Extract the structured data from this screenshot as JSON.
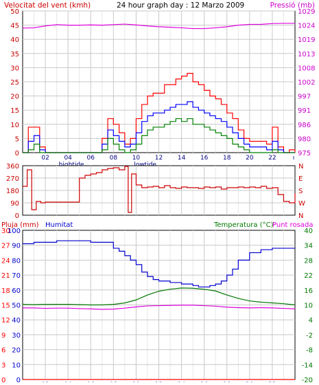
{
  "header": {
    "left_title": "Velocitat del vent (kmh)",
    "center_title": "24 hour graph day : 12 Marzo 2009",
    "right_title": "Pressió (mb)"
  },
  "colors": {
    "gust": "#ff0000",
    "avg": "#0000ff",
    "min": "#008000",
    "pressure": "#e000e0",
    "dir": "#cc0000",
    "humidity": "#0000cc",
    "temperature": "#007700",
    "dewpoint": "#e000e0",
    "rain": "#ff0000",
    "grid": "#c8c8c8",
    "left_axis": "#cc0000",
    "right_axis": "#cc00cc",
    "bottom_axis": "#000080"
  },
  "chart_data": [
    {
      "type": "line",
      "title": "Velocitat del vent (kmh) / Pressió (mb)",
      "xlabel": "",
      "x_ticks": [
        "02",
        "04",
        "06",
        "08",
        "10",
        "12",
        "14",
        "16",
        "18",
        "20",
        "22"
      ],
      "x_tick_hours": [
        2,
        4,
        6,
        8,
        10,
        12,
        14,
        16,
        18,
        20,
        22
      ],
      "x_annotations": [
        {
          "label": "hightide",
          "hour": 3
        },
        {
          "label": "lowtide",
          "hour": 9.5
        }
      ],
      "xlim": [
        0,
        24
      ],
      "ylabel_left": "Velocitat del vent (kmh)",
      "ylim_left": [
        0,
        50
      ],
      "yticks_left": [
        0,
        5,
        10,
        15,
        20,
        25,
        30,
        35,
        40,
        45,
        50
      ],
      "ylabel_right": "Pressió (mb)",
      "ylim_right": [
        975,
        1029
      ],
      "yticks_right": [
        975,
        980,
        986,
        991,
        997,
        1002,
        1008,
        1013,
        1019,
        1024,
        1029
      ],
      "series": [
        {
          "axis": "right",
          "color_key": "pressure",
          "x": [
            0,
            1,
            2,
            3,
            4,
            5,
            6,
            7,
            8,
            9,
            10,
            11,
            12,
            13,
            14,
            15,
            16,
            17,
            18,
            19,
            20,
            21,
            22,
            23,
            24
          ],
          "y": [
            1022.5,
            1022.6,
            1023.3,
            1023.8,
            1023.6,
            1023.6,
            1023.7,
            1023.6,
            1023.8,
            1024.0,
            1023.7,
            1023.3,
            1023.0,
            1022.8,
            1022.6,
            1022.3,
            1022.3,
            1022.6,
            1023.0,
            1023.6,
            1023.9,
            1023.9,
            1024.2,
            1024.3,
            1024.3
          ]
        },
        {
          "axis": "left",
          "color_key": "gust",
          "x": [
            0,
            0.5,
            1,
            1.5,
            2,
            2.5,
            3,
            3.5,
            4,
            4.5,
            5,
            5.5,
            6,
            6.5,
            7,
            7.5,
            8,
            8.5,
            9,
            9.5,
            10,
            10.5,
            11,
            11.5,
            12,
            12.5,
            13,
            13.5,
            14,
            14.5,
            15,
            15.5,
            16,
            16.5,
            17,
            17.5,
            18,
            18.5,
            19,
            19.5,
            20,
            20.5,
            21,
            21.5,
            22,
            22.5,
            23,
            23.5,
            24
          ],
          "y": [
            0,
            9,
            9,
            2,
            0,
            0,
            0,
            0,
            0,
            0,
            0,
            0,
            0,
            0,
            5,
            12,
            10,
            7,
            3,
            5,
            12,
            17,
            20,
            21,
            21,
            24,
            24,
            26,
            27,
            28,
            25,
            24,
            22,
            20,
            19,
            17,
            14,
            12,
            8,
            5,
            4,
            4,
            4,
            3,
            9,
            2,
            0,
            1,
            0
          ]
        },
        {
          "axis": "left",
          "color_key": "avg",
          "x": [
            0,
            0.5,
            1,
            1.5,
            2,
            2.5,
            3,
            3.5,
            4,
            4.5,
            5,
            5.5,
            6,
            6.5,
            7,
            7.5,
            8,
            8.5,
            9,
            9.5,
            10,
            10.5,
            11,
            11.5,
            12,
            12.5,
            13,
            13.5,
            14,
            14.5,
            15,
            15.5,
            16,
            16.5,
            17,
            17.5,
            18,
            18.5,
            19,
            19.5,
            20,
            20.5,
            21,
            21.5,
            22,
            22.5,
            23,
            23.5,
            24
          ],
          "y": [
            0,
            4,
            6,
            1,
            0,
            0,
            0,
            0,
            0,
            0,
            0,
            0,
            0,
            0,
            3,
            8,
            6,
            4,
            2,
            3,
            7,
            11,
            13,
            14,
            14,
            15,
            16,
            17,
            17,
            18,
            16,
            15,
            14,
            13,
            12,
            11,
            9,
            7,
            5,
            3,
            2,
            2,
            2,
            1,
            4,
            1,
            0,
            0,
            0
          ]
        },
        {
          "axis": "left",
          "color_key": "min",
          "x": [
            0,
            0.5,
            1,
            1.5,
            2,
            2.5,
            3,
            3.5,
            4,
            4.5,
            5,
            5.5,
            6,
            6.5,
            7,
            7.5,
            8,
            8.5,
            9,
            9.5,
            10,
            10.5,
            11,
            11.5,
            12,
            12.5,
            13,
            13.5,
            14,
            14.5,
            15,
            15.5,
            16,
            16.5,
            17,
            17.5,
            18,
            18.5,
            19,
            19.5,
            20,
            20.5,
            21,
            21.5,
            22,
            22.5,
            23,
            23.5,
            24
          ],
          "y": [
            0,
            1,
            3,
            0,
            0,
            0,
            0,
            0,
            0,
            0,
            0,
            0,
            0,
            0,
            1,
            5,
            3,
            1,
            0,
            1,
            3,
            6,
            8,
            9,
            9,
            10,
            11,
            12,
            11,
            12,
            10,
            10,
            9,
            8,
            7,
            6,
            5,
            3,
            2,
            1,
            0,
            0,
            0,
            0,
            1,
            0,
            0,
            0,
            0
          ]
        }
      ]
    },
    {
      "type": "line",
      "title": "Direcció del vent",
      "xlim": [
        0,
        24
      ],
      "ylim": [
        0,
        360
      ],
      "yticks_left": [
        0,
        90,
        180,
        270,
        360
      ],
      "compass_labels": [
        "N",
        "W",
        "S",
        "E",
        "N"
      ],
      "series": [
        {
          "color_key": "dir",
          "x": [
            0,
            0.4,
            0.8,
            1.2,
            1.6,
            2.0,
            2.5,
            3,
            3.5,
            4,
            4.5,
            5,
            5.5,
            6,
            6.5,
            7,
            7.5,
            8,
            8.5,
            9,
            9.3,
            9.6,
            10,
            10.5,
            11,
            11.5,
            12,
            12.5,
            13,
            13.5,
            14,
            14.5,
            15,
            15.5,
            16,
            16.5,
            17,
            17.5,
            18,
            18.5,
            19,
            19.5,
            20,
            20.5,
            21,
            21.5,
            22,
            22.5,
            23,
            23.5,
            24
          ],
          "y": [
            210,
            330,
            40,
            100,
            90,
            95,
            95,
            95,
            95,
            95,
            95,
            270,
            290,
            300,
            310,
            330,
            340,
            345,
            330,
            355,
            20,
            300,
            220,
            200,
            205,
            210,
            200,
            215,
            200,
            195,
            205,
            200,
            200,
            195,
            205,
            200,
            205,
            190,
            200,
            200,
            205,
            200,
            205,
            200,
            210,
            195,
            200,
            150,
            100,
            90,
            160
          ]
        }
      ]
    },
    {
      "type": "line",
      "title": "Pluja / Humitat / Temperatura / Punt rosada",
      "labels": {
        "rain": "Pluja (mm)",
        "humidity": "Humitat",
        "temperature": "Temperatura (°C)",
        "dewpoint": "Punt rosada"
      },
      "xlim": [
        0,
        24
      ],
      "x_ticks": [
        "02",
        "04",
        "06",
        "08",
        "10",
        "12",
        "14",
        "16",
        "18",
        "20",
        "22"
      ],
      "x_tick_hours": [
        2,
        4,
        6,
        8,
        10,
        12,
        14,
        16,
        18,
        20,
        22
      ],
      "x_annotations": [
        {
          "label": "hightide",
          "hour": 3
        },
        {
          "label": "lowtide",
          "hour": 9.5
        }
      ],
      "rain_ticks": [
        0,
        3,
        6,
        9,
        12,
        15,
        18,
        21,
        24,
        27,
        30
      ],
      "humidity_ticks": [
        0,
        10,
        20,
        30,
        40,
        50,
        60,
        70,
        80,
        90,
        100
      ],
      "ylim_right": [
        -20,
        40
      ],
      "yticks_right": [
        -20,
        -14,
        -8,
        -2,
        4,
        10,
        16,
        22,
        28,
        34,
        40
      ],
      "series": [
        {
          "name": "Humitat",
          "axis": "humidity",
          "color_key": "humidity",
          "x": [
            0,
            1,
            2,
            3,
            4,
            5,
            6,
            7,
            8,
            8.5,
            9,
            9.5,
            10,
            10.5,
            11,
            11.5,
            12,
            12.5,
            13,
            13.5,
            14,
            14.5,
            15,
            15.5,
            16,
            16.5,
            17,
            17.5,
            18,
            18.5,
            19,
            20,
            21,
            22,
            23,
            24
          ],
          "y": [
            91,
            92,
            92,
            93,
            93,
            93,
            92,
            92,
            88,
            86,
            83,
            80,
            77,
            72,
            69,
            67,
            66,
            66,
            65,
            65,
            64,
            64,
            63,
            62,
            62,
            63,
            64,
            66,
            70,
            74,
            80,
            85,
            87,
            88,
            88,
            88
          ]
        },
        {
          "name": "Temperatura",
          "axis": "temp",
          "color_key": "temperature",
          "x": [
            0,
            1,
            2,
            3,
            4,
            5,
            6,
            7,
            8,
            9,
            10,
            11,
            12,
            13,
            14,
            15,
            16,
            17,
            18,
            19,
            20,
            21,
            22,
            23,
            24
          ],
          "y": [
            10.2,
            10.1,
            10.2,
            10.2,
            10.2,
            10.1,
            10.0,
            10.0,
            10.2,
            10.8,
            12.0,
            14.0,
            15.5,
            16.3,
            16.8,
            16.7,
            16.3,
            15.6,
            14.0,
            12.6,
            11.6,
            11.1,
            10.8,
            10.5,
            10.0
          ]
        },
        {
          "name": "Punt rosada",
          "axis": "temp",
          "color_key": "dewpoint",
          "x": [
            0,
            1,
            2,
            3,
            4,
            5,
            6,
            7,
            8,
            9,
            10,
            11,
            12,
            13,
            14,
            15,
            16,
            17,
            18,
            19,
            20,
            21,
            22,
            23,
            24
          ],
          "y": [
            8.8,
            8.8,
            8.6,
            8.7,
            8.7,
            8.5,
            8.4,
            8.2,
            8.3,
            8.7,
            9.2,
            9.6,
            9.7,
            9.8,
            9.9,
            9.9,
            9.7,
            9.5,
            9.1,
            8.9,
            8.8,
            8.9,
            8.8,
            8.6,
            8.4
          ]
        },
        {
          "name": "Pluja (mm)",
          "axis": "rain",
          "color_key": "rain",
          "x": [
            0,
            24
          ],
          "y": [
            0,
            0
          ]
        }
      ]
    }
  ]
}
